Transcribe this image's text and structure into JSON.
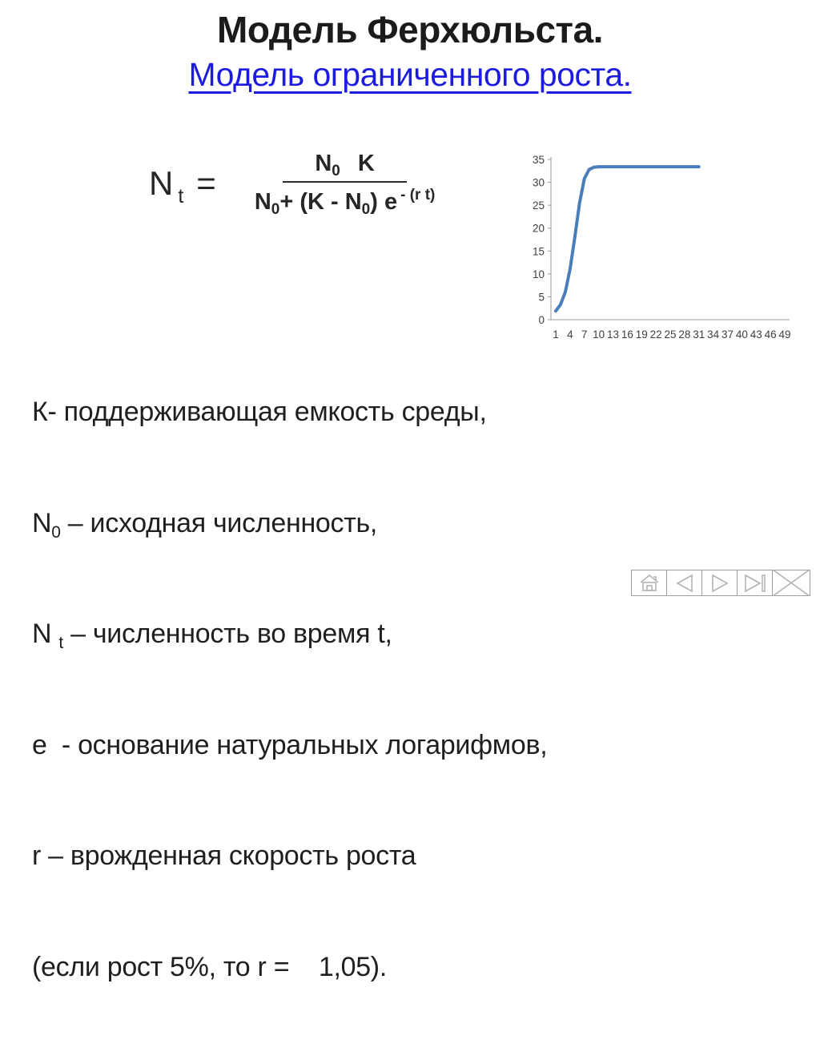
{
  "slide": {
    "title": "Модель Ферхюльста.",
    "subtitle": "Модель ограниченного роста."
  },
  "formula": {
    "lhs_base": "N",
    "lhs_sub": "t",
    "equals": "=",
    "num_n": "N",
    "num_n_sub": "0",
    "num_k": "K",
    "den_p1": "N",
    "den_p1_sub": "0",
    "den_p2": "+ (K - N",
    "den_p2_sub": "0",
    "den_p3": ") e",
    "den_sup": "- (r t)"
  },
  "definitions": {
    "lines": [
      {
        "pre": "К- поддерживающая емкость среды,",
        "sub": "",
        "post": ""
      },
      {
        "pre": "N",
        "sub": "0",
        "post": " – исходная численность,"
      },
      {
        "pre": "N ",
        "sub": "t",
        "post": " – численность во время t,"
      },
      {
        "pre": "е  - основание натуральных логарифмов,",
        "sub": "",
        "post": ""
      },
      {
        "pre": "r – врожденная скорость роста",
        "sub": "",
        "post": ""
      },
      {
        "pre": "(если рост 5%, то r =    1,05).",
        "sub": "",
        "post": ""
      }
    ]
  },
  "chart_data": {
    "type": "line",
    "title": "",
    "xlabel": "",
    "ylabel": "",
    "x": [
      1,
      2,
      3,
      4,
      5,
      6,
      7,
      8,
      9,
      10,
      11,
      12,
      13,
      14,
      15,
      16,
      17,
      18,
      19,
      20,
      21,
      22,
      23,
      24,
      25,
      26,
      27,
      28,
      29,
      30,
      31
    ],
    "values": [
      1.9,
      3.3,
      6,
      11,
      18,
      25.5,
      30.8,
      32.8,
      33.3,
      33.4,
      33.4,
      33.4,
      33.4,
      33.4,
      33.4,
      33.4,
      33.4,
      33.4,
      33.4,
      33.4,
      33.4,
      33.4,
      33.4,
      33.4,
      33.4,
      33.4,
      33.4,
      33.4,
      33.4,
      33.4,
      33.4
    ],
    "xlim": [
      0,
      50
    ],
    "ylim": [
      0,
      35
    ],
    "xticks": [
      1,
      4,
      7,
      10,
      13,
      16,
      19,
      22,
      25,
      28,
      31,
      34,
      37,
      40,
      43,
      46,
      49
    ],
    "yticks": [
      0,
      5,
      10,
      15,
      20,
      25,
      30,
      35
    ],
    "grid": false,
    "legend": "none",
    "line_color": "#4A7EBB",
    "axis_color": "#9B9B9B",
    "tick_label_color": "#3F3F3F"
  },
  "nav": {
    "items": [
      {
        "label": "home"
      },
      {
        "label": "previous"
      },
      {
        "label": "next"
      },
      {
        "label": "last"
      },
      {
        "label": "close"
      }
    ]
  },
  "colors": {
    "link_blue": "#1C1CE0",
    "text": "#1F1F1F",
    "curve_blue": "#4A7EBB"
  }
}
